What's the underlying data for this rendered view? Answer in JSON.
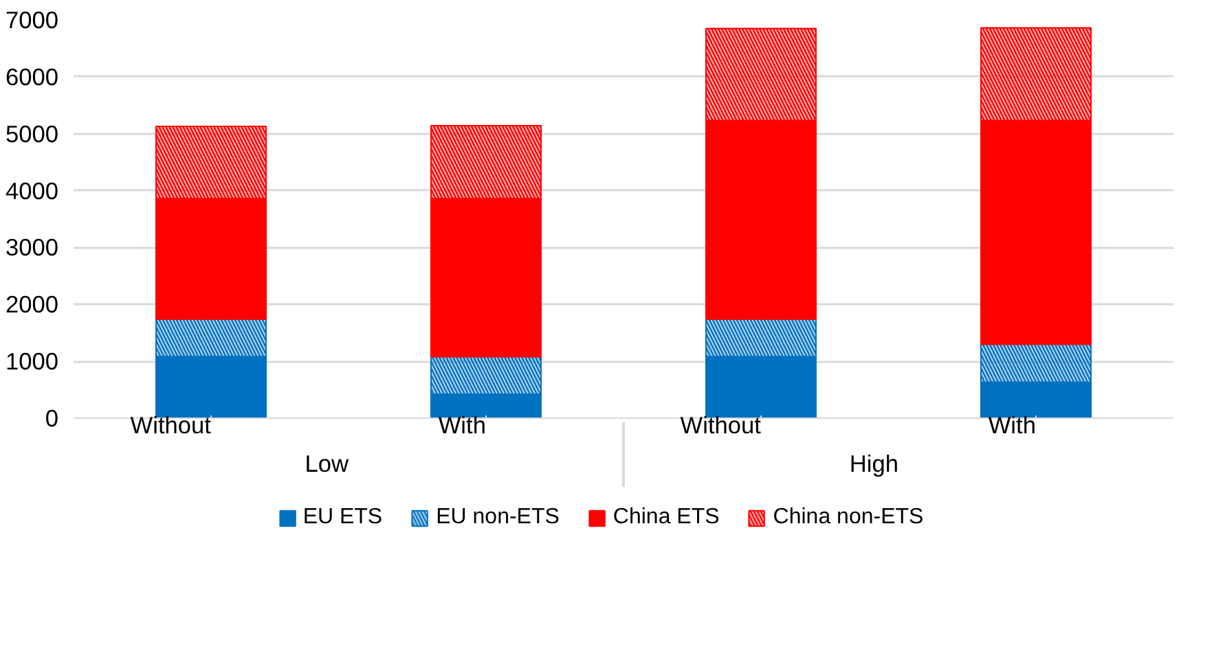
{
  "chart_data": {
    "type": "bar",
    "stacked": true,
    "categories": [
      "Without",
      "With",
      "Without",
      "With"
    ],
    "annotations": [
      "Low",
      "High"
    ],
    "series": [
      {
        "name": "EU ETS",
        "color": "#0070c0",
        "values": [
          1080,
          420,
          1080,
          630
        ]
      },
      {
        "name": "EU non-ETS",
        "color": "#0070c0",
        "values": [
          660,
          660,
          660,
          670
        ]
      },
      {
        "name": "China ETS",
        "color": "#ff0000",
        "values": [
          2120,
          2780,
          3490,
          3930
        ]
      },
      {
        "name": "China non-ETS",
        "color": "#ff0000",
        "values": [
          1270,
          1280,
          1620,
          1630
        ]
      }
    ],
    "ylim": [
      0,
      7000
    ],
    "yticks": [
      0,
      1000,
      2000,
      3000,
      4000,
      5000,
      6000,
      7000
    ],
    "grid": "y",
    "legend": "bottom"
  }
}
